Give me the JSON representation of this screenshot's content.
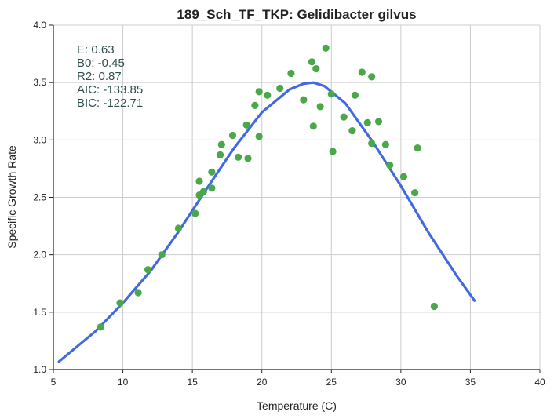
{
  "chart_data": {
    "type": "scatter",
    "title": "189_Sch_TF_TKP: Gelidibacter gilvus",
    "xlabel": "Temperature (C)",
    "ylabel": "Specific Growth Rate",
    "xlim": [
      5,
      40
    ],
    "ylim": [
      1.0,
      4.0
    ],
    "xticks": [
      "5",
      "10",
      "15",
      "20",
      "25",
      "30",
      "35",
      "40"
    ],
    "yticks": [
      "1.0",
      "1.5",
      "2.0",
      "2.5",
      "3.0",
      "3.5",
      "4.0"
    ],
    "grid": true,
    "stats": [
      "E:  0.63",
      "B0:  -0.45",
      "R2:  0.87",
      "AIC: -133.85",
      "BIC: -122.71"
    ],
    "colors": {
      "points": "#4aa84a",
      "fit": "#4169e1"
    },
    "series": [
      {
        "type": "scatter",
        "x": [
          8.4,
          9.8,
          11.1,
          11.8,
          12.8,
          14.0,
          15.2,
          15.5,
          15.8,
          15.5,
          16.4,
          16.4,
          17.0,
          17.1,
          17.9,
          18.3,
          18.9,
          19.0,
          19.5,
          19.8,
          19.8,
          20.4,
          21.3,
          22.1,
          23.0,
          23.6,
          23.7,
          23.9,
          24.2,
          24.6,
          25.0,
          25.1,
          25.9,
          26.5,
          26.7,
          27.2,
          27.6,
          27.9,
          27.9,
          28.4,
          28.9,
          29.2,
          30.2,
          31.0,
          31.2,
          32.4
        ],
        "y": [
          1.37,
          1.58,
          1.67,
          1.87,
          2.0,
          2.23,
          2.36,
          2.52,
          2.55,
          2.64,
          2.58,
          2.72,
          2.87,
          2.96,
          3.04,
          2.85,
          3.13,
          2.84,
          3.3,
          3.03,
          3.42,
          3.39,
          3.45,
          3.58,
          3.35,
          3.68,
          3.12,
          3.62,
          3.29,
          3.8,
          3.4,
          2.9,
          3.2,
          3.08,
          3.39,
          3.59,
          3.15,
          3.55,
          2.97,
          3.16,
          2.96,
          2.78,
          2.68,
          2.54,
          2.93,
          1.55
        ]
      },
      {
        "type": "line",
        "x": [
          5.4,
          8,
          10,
          12,
          14,
          16,
          18,
          20,
          22,
          23,
          23.7,
          24.5,
          26,
          28,
          30,
          32,
          34,
          35.3
        ],
        "y": [
          1.07,
          1.33,
          1.58,
          1.86,
          2.2,
          2.57,
          2.93,
          3.24,
          3.44,
          3.49,
          3.5,
          3.47,
          3.32,
          2.98,
          2.6,
          2.19,
          1.82,
          1.6
        ]
      }
    ]
  }
}
